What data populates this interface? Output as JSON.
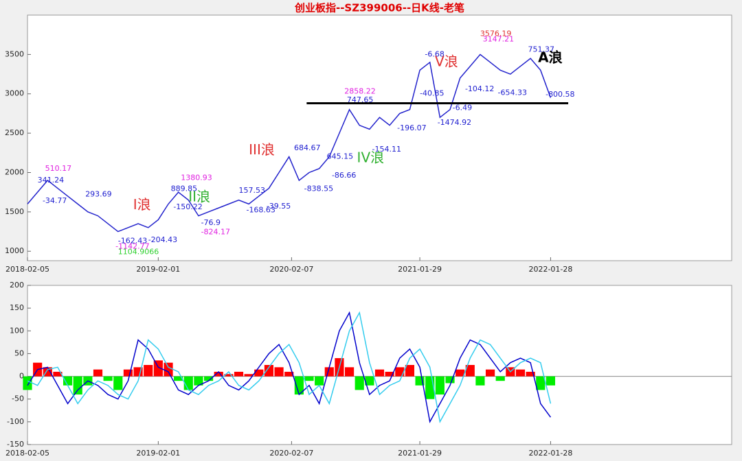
{
  "chart_data": [
    {
      "type": "line",
      "title": "创业板指--SZ399006--日K线-老笔",
      "title_color": "#e00000",
      "x": [
        0,
        4,
        8,
        12,
        16,
        20,
        24,
        28,
        32,
        36,
        40,
        44,
        48,
        52,
        56,
        60,
        64,
        68,
        72,
        76,
        80,
        84,
        88,
        92,
        96,
        100,
        104,
        108,
        112,
        116,
        120,
        124,
        128,
        132,
        136,
        140,
        144,
        148,
        152,
        156,
        160,
        164,
        168,
        172,
        176,
        180,
        184,
        188,
        192,
        196,
        200,
        204,
        208
      ],
      "values": [
        1600,
        1750,
        1900,
        1800,
        1700,
        1600,
        1500,
        1450,
        1350,
        1250,
        1300,
        1350,
        1300,
        1400,
        1600,
        1750,
        1650,
        1450,
        1500,
        1550,
        1600,
        1650,
        1600,
        1700,
        1800,
        2000,
        2200,
        1900,
        2000,
        2050,
        2200,
        2500,
        2800,
        2600,
        2550,
        2700,
        2600,
        2750,
        2800,
        3300,
        3400,
        2700,
        2800,
        3200,
        3350,
        3500,
        3400,
        3300,
        3250,
        3350,
        3450,
        3300,
        2950
      ],
      "color": "#2222cc",
      "xlim": [
        0,
        280
      ],
      "ylim": [
        880,
        4000
      ],
      "yticks": [
        1000,
        1500,
        2000,
        2500,
        3000,
        3500
      ],
      "xticks": [
        {
          "value": 0,
          "label": "2018-02-05"
        },
        {
          "value": 52,
          "label": "2019-02-01"
        },
        {
          "value": 105,
          "label": "2020-02-07"
        },
        {
          "value": 156,
          "label": "2021-01-29"
        },
        {
          "value": 208,
          "label": "2022-01-28"
        }
      ],
      "hline": {
        "y": 2880,
        "x": [
          111,
          215
        ],
        "color": "#000000"
      },
      "annotations": [
        {
          "text": "510.17",
          "x": 7,
          "y": 2050,
          "color": "#e020e0"
        },
        {
          "text": "341.24",
          "x": 4,
          "y": 1900,
          "color": "#2020d0"
        },
        {
          "text": "-34.77",
          "x": 6,
          "y": 1640,
          "color": "#2020d0"
        },
        {
          "text": "293.69",
          "x": 23,
          "y": 1720,
          "color": "#2020d0"
        },
        {
          "text": "-1142.77",
          "x": 35,
          "y": 1060,
          "color": "#e020e0"
        },
        {
          "text": "1104.9066",
          "x": 36,
          "y": 990,
          "color": "#30d030"
        },
        {
          "text": "-162.43",
          "x": 36,
          "y": 1130,
          "color": "#2020d0"
        },
        {
          "text": "-204.43",
          "x": 48,
          "y": 1140,
          "color": "#2020d0"
        },
        {
          "text": "1380.93",
          "x": 61,
          "y": 1930,
          "color": "#e020e0"
        },
        {
          "text": "889.85",
          "x": 57,
          "y": 1790,
          "color": "#2020d0"
        },
        {
          "text": "-150.22",
          "x": 58,
          "y": 1560,
          "color": "#2020d0"
        },
        {
          "text": "-824.17",
          "x": 69,
          "y": 1240,
          "color": "#e020e0"
        },
        {
          "text": "-76.9",
          "x": 69,
          "y": 1360,
          "color": "#2020d0"
        },
        {
          "text": "157.53",
          "x": 84,
          "y": 1770,
          "color": "#2020d0"
        },
        {
          "text": "-168.63",
          "x": 87,
          "y": 1520,
          "color": "#2020d0"
        },
        {
          "text": "-39.55",
          "x": 95,
          "y": 1570,
          "color": "#2020d0"
        },
        {
          "text": "684.67",
          "x": 106,
          "y": 2310,
          "color": "#2020d0"
        },
        {
          "text": "-838.55",
          "x": 110,
          "y": 1790,
          "color": "#2020d0"
        },
        {
          "text": "645.15",
          "x": 119,
          "y": 2200,
          "color": "#2020d0"
        },
        {
          "text": "-86.66",
          "x": 121,
          "y": 1960,
          "color": "#2020d0"
        },
        {
          "text": "2858.22",
          "x": 126,
          "y": 3030,
          "color": "#e020e0"
        },
        {
          "text": "747.65",
          "x": 127,
          "y": 2920,
          "color": "#2020d0"
        },
        {
          "text": "-154.11",
          "x": 137,
          "y": 2290,
          "color": "#2020d0"
        },
        {
          "text": "-196.07",
          "x": 147,
          "y": 2560,
          "color": "#2020d0"
        },
        {
          "text": "-6.68",
          "x": 158,
          "y": 3500,
          "color": "#2020d0"
        },
        {
          "text": "-40.85",
          "x": 156,
          "y": 3000,
          "color": "#2020d0"
        },
        {
          "text": "-1474.92",
          "x": 163,
          "y": 2630,
          "color": "#2020d0"
        },
        {
          "text": "-6.49",
          "x": 169,
          "y": 2820,
          "color": "#2020d0"
        },
        {
          "text": "-104.12",
          "x": 174,
          "y": 3060,
          "color": "#2020d0"
        },
        {
          "text": "3576.19",
          "x": 180,
          "y": 3760,
          "color": "#e03030"
        },
        {
          "text": "3147.21",
          "x": 181,
          "y": 3690,
          "color": "#e020e0"
        },
        {
          "text": "751.37",
          "x": 199,
          "y": 3560,
          "color": "#2020d0"
        },
        {
          "text": "-654.33",
          "x": 187,
          "y": 3010,
          "color": "#2020d0"
        },
        {
          "text": "-800.58",
          "x": 206,
          "y": 2990,
          "color": "#2020d0"
        },
        {
          "text": "I浪",
          "x": 42,
          "y": 1580,
          "color": "#e03030",
          "size": 20
        },
        {
          "text": "II浪",
          "x": 64,
          "y": 1680,
          "color": "#30b030",
          "size": 20
        },
        {
          "text": "III浪",
          "x": 88,
          "y": 2280,
          "color": "#e03030",
          "size": 20
        },
        {
          "text": "IV浪",
          "x": 131,
          "y": 2180,
          "color": "#30b030",
          "size": 20
        },
        {
          "text": "V浪",
          "x": 162,
          "y": 3400,
          "color": "#e03030",
          "size": 20
        },
        {
          "text": "A浪",
          "x": 203,
          "y": 3450,
          "color": "#000000",
          "size": 20
        }
      ]
    },
    {
      "type": "macd",
      "x": [
        0,
        4,
        8,
        12,
        16,
        20,
        24,
        28,
        32,
        36,
        40,
        44,
        48,
        52,
        56,
        60,
        64,
        68,
        72,
        76,
        80,
        84,
        88,
        92,
        96,
        100,
        104,
        108,
        112,
        116,
        120,
        124,
        128,
        132,
        136,
        140,
        144,
        148,
        152,
        156,
        160,
        164,
        168,
        172,
        176,
        180,
        184,
        188,
        192,
        196,
        200,
        204,
        208
      ],
      "values": [
        -30,
        30,
        20,
        10,
        -20,
        -40,
        -20,
        15,
        -10,
        -30,
        15,
        20,
        25,
        35,
        30,
        -10,
        -30,
        -20,
        -10,
        10,
        5,
        10,
        5,
        15,
        25,
        20,
        10,
        -40,
        -10,
        -20,
        20,
        40,
        20,
        -30,
        -20,
        15,
        10,
        20,
        25,
        -20,
        -50,
        -40,
        -15,
        15,
        25,
        -20,
        15,
        -10,
        20,
        15,
        10,
        -30,
        -20
      ],
      "pos_color": "#ff0000",
      "neg_color": "#00ee00",
      "lines": [
        {
          "color": "#0000cc",
          "values": [
            -20,
            15,
            20,
            -20,
            -60,
            -30,
            -10,
            -20,
            -40,
            -50,
            -10,
            80,
            60,
            20,
            10,
            -30,
            -40,
            -20,
            -10,
            10,
            -20,
            -30,
            -10,
            20,
            50,
            70,
            30,
            -40,
            -20,
            -60,
            20,
            100,
            140,
            30,
            -40,
            -20,
            -10,
            40,
            60,
            20,
            -100,
            -60,
            -20,
            40,
            80,
            70,
            40,
            10,
            30,
            40,
            30,
            -60,
            -90
          ]
        },
        {
          "color": "#33ccee",
          "values": [
            -10,
            -20,
            15,
            20,
            -20,
            -60,
            -30,
            -10,
            -20,
            -40,
            -50,
            -10,
            80,
            60,
            20,
            10,
            -30,
            -40,
            -20,
            -10,
            10,
            -20,
            -30,
            -10,
            20,
            50,
            70,
            30,
            -40,
            -20,
            -60,
            20,
            100,
            140,
            30,
            -40,
            -20,
            -10,
            40,
            60,
            20,
            -100,
            -60,
            -20,
            40,
            80,
            70,
            40,
            10,
            30,
            40,
            30,
            -60
          ]
        }
      ],
      "xlim": [
        0,
        280
      ],
      "ylim": [
        -150,
        200
      ],
      "yticks": [
        -150,
        -100,
        -50,
        0,
        50,
        100,
        150,
        200
      ],
      "xticks": [
        {
          "value": 0,
          "label": "2018-02-05"
        },
        {
          "value": 52,
          "label": "2019-02-01"
        },
        {
          "value": 105,
          "label": "2020-02-07"
        },
        {
          "value": 156,
          "label": "2021-01-29"
        },
        {
          "value": 208,
          "label": "2022-01-28"
        }
      ]
    }
  ]
}
